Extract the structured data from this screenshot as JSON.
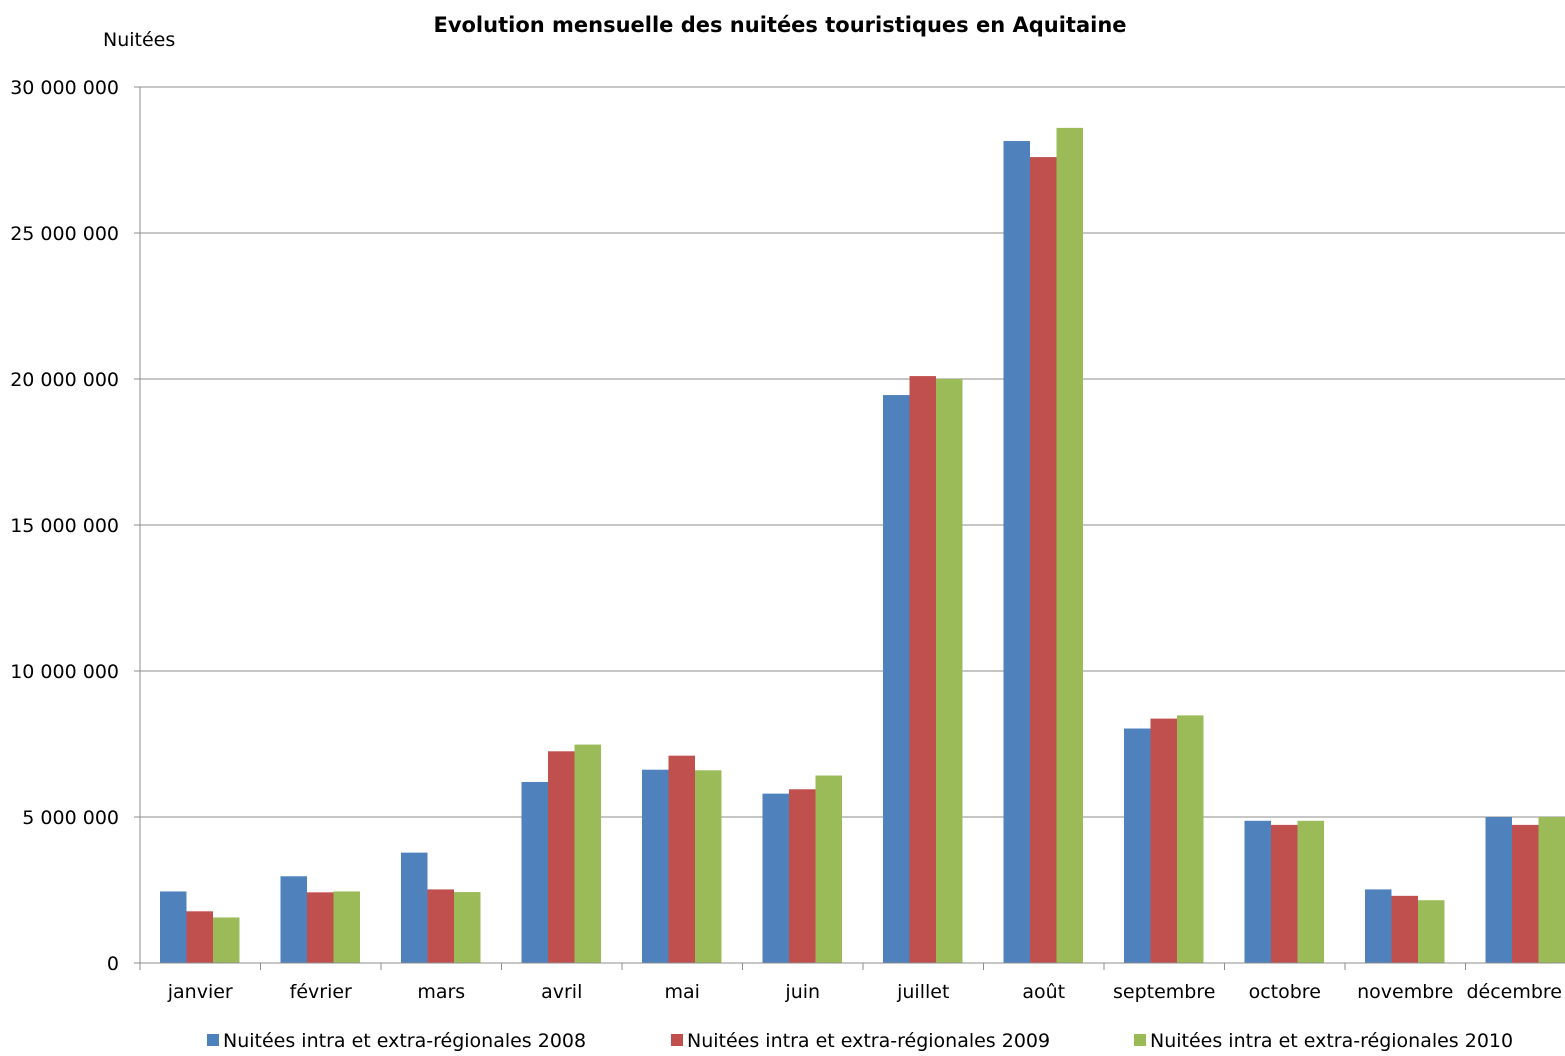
{
  "chart_data": {
    "type": "bar",
    "title": "Evolution mensuelle des nuitées touristiques en Aquitaine",
    "ylabel": "Nuitées",
    "xlabel": "",
    "ylim": [
      0,
      30000000
    ],
    "yticks": [
      0,
      5000000,
      10000000,
      15000000,
      20000000,
      25000000,
      30000000
    ],
    "ytick_labels": [
      "0",
      "5 000 000",
      "10 000 000",
      "15 000 000",
      "20 000 000",
      "25 000 000",
      "30 000 000"
    ],
    "grid": true,
    "legend_position": "bottom",
    "categories": [
      "janvier",
      "février",
      "mars",
      "avril",
      "mai",
      "juin",
      "juillet",
      "août",
      "septembre",
      "octobre",
      "novembre",
      "décembre"
    ],
    "series": [
      {
        "name": "Nuitées intra et extra-régionales 2008",
        "color": "#4f81bd",
        "values": [
          2450000,
          2970000,
          3780000,
          6200000,
          6620000,
          5800000,
          19450000,
          28150000,
          8030000,
          4870000,
          2520000,
          5000000
        ]
      },
      {
        "name": "Nuitées intra et extra-régionales 2009",
        "color": "#c0504d",
        "values": [
          1770000,
          2420000,
          2520000,
          7250000,
          7100000,
          5950000,
          20100000,
          27600000,
          8370000,
          4730000,
          2300000,
          4730000
        ]
      },
      {
        "name": "Nuitées intra et extra-régionales 2010",
        "color": "#9bbb59",
        "values": [
          1560000,
          2450000,
          2430000,
          7480000,
          6600000,
          6420000,
          20000000,
          28600000,
          8480000,
          4870000,
          2150000,
          5000000
        ]
      }
    ]
  }
}
